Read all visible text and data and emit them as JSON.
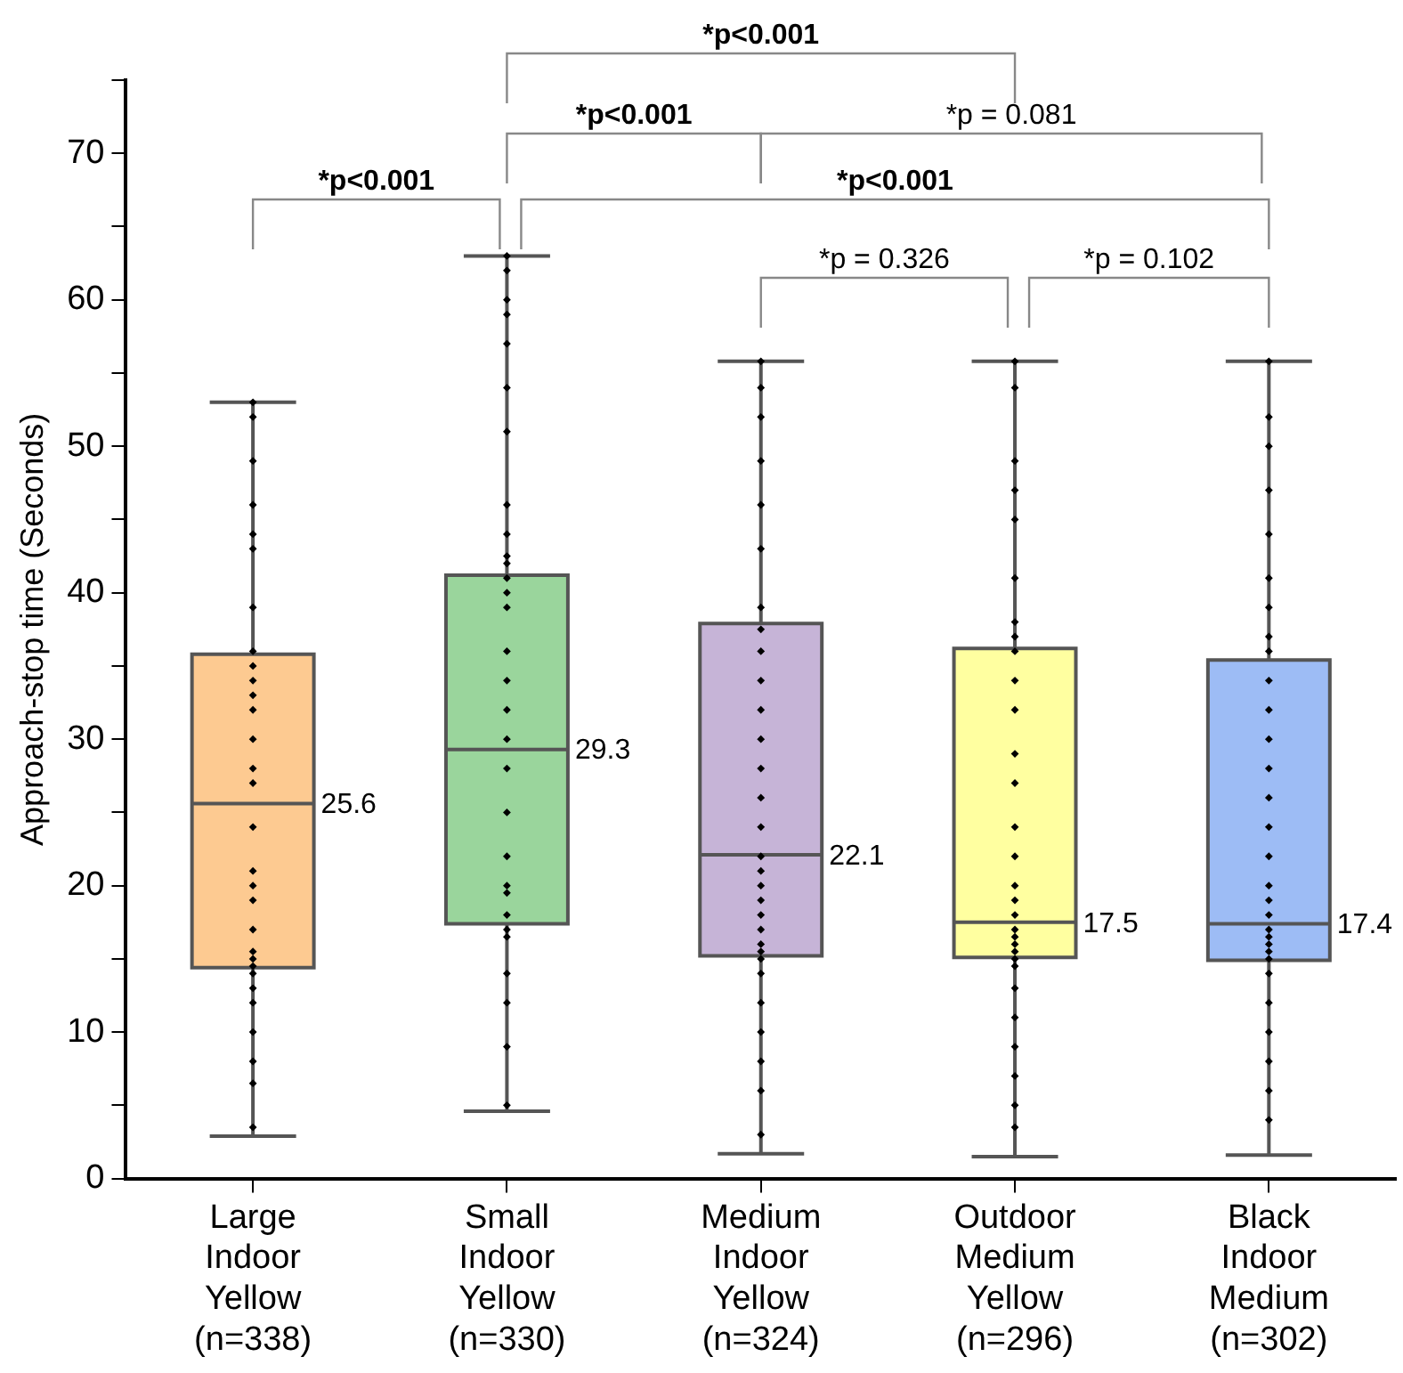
{
  "chart_data": {
    "type": "box",
    "ylabel": "Approach-stop time (Seconds)",
    "categories": [
      "Large\nIndoor\nYellow\n(n=338)",
      "Small\nIndoor\nYellow\n(n=330)",
      "Medium\nIndoor\nYellow\n(n=324)",
      "Outdoor\nMedium\nYellow\n(n=296)",
      "Black\nIndoor\nMedium\n(n=302)"
    ],
    "ylim": [
      0,
      75
    ],
    "yticks": [
      0,
      {
        "value": 5,
        "label": null
      },
      10,
      {
        "value": 15,
        "label": null
      },
      20,
      {
        "value": 25,
        "label": null
      },
      30,
      {
        "value": 35,
        "label": null
      },
      40,
      {
        "value": 45,
        "label": null
      },
      50,
      {
        "value": 55,
        "label": null
      },
      60,
      {
        "value": 65,
        "label": null
      },
      70,
      {
        "value": 75,
        "label": null
      }
    ],
    "grid": false,
    "legend": false,
    "series": [
      {
        "value_labels": [
          "25.6",
          "29.3",
          "22.1",
          "17.5",
          "17.4"
        ],
        "colors": [
          "#fdca91",
          "#9ad59c",
          "#c6b4d7",
          "#ffffa0",
          "#9dbcf5"
        ],
        "boxes": [
          {
            "low": 2.9,
            "q1": 14.4,
            "median": 25.6,
            "q3": 35.8,
            "high": 53
          },
          {
            "low": 4.6,
            "q1": 17.4,
            "median": 29.3,
            "q3": 41.2,
            "high": 63
          },
          {
            "low": 1.7,
            "q1": 15.2,
            "median": 22.1,
            "q3": 37.9,
            "high": 55.8
          },
          {
            "low": 1.5,
            "q1": 15.1,
            "median": 17.5,
            "q3": 36.2,
            "high": 55.8
          },
          {
            "low": 1.6,
            "q1": 14.9,
            "median": 17.4,
            "q3": 35.4,
            "high": 55.8
          }
        ]
      },
      {
        "type": "scatter",
        "color": "#000000",
        "marker": "diamond",
        "x": [
          "Large\nIndoor\nYellow\n(n=338)",
          "Large\nIndoor\nYellow\n(n=338)",
          "Large\nIndoor\nYellow\n(n=338)",
          "Large\nIndoor\nYellow\n(n=338)",
          "Large\nIndoor\nYellow\n(n=338)",
          "Large\nIndoor\nYellow\n(n=338)",
          "Large\nIndoor\nYellow\n(n=338)",
          "Large\nIndoor\nYellow\n(n=338)",
          "Large\nIndoor\nYellow\n(n=338)",
          "Large\nIndoor\nYellow\n(n=338)",
          "Large\nIndoor\nYellow\n(n=338)",
          "Large\nIndoor\nYellow\n(n=338)",
          "Large\nIndoor\nYellow\n(n=338)",
          "Large\nIndoor\nYellow\n(n=338)",
          "Large\nIndoor\nYellow\n(n=338)",
          "Large\nIndoor\nYellow\n(n=338)",
          "Large\nIndoor\nYellow\n(n=338)",
          "Large\nIndoor\nYellow\n(n=338)",
          "Large\nIndoor\nYellow\n(n=338)",
          "Large\nIndoor\nYellow\n(n=338)",
          "Large\nIndoor\nYellow\n(n=338)",
          "Large\nIndoor\nYellow\n(n=338)",
          "Large\nIndoor\nYellow\n(n=338)",
          "Large\nIndoor\nYellow\n(n=338)",
          "Large\nIndoor\nYellow\n(n=338)",
          "Large\nIndoor\nYellow\n(n=338)",
          "Large\nIndoor\nYellow\n(n=338)",
          "Large\nIndoor\nYellow\n(n=338)",
          "Large\nIndoor\nYellow\n(n=338)",
          "Large\nIndoor\nYellow\n(n=338)",
          "Small\nIndoor\nYellow\n(n=330)",
          "Small\nIndoor\nYellow\n(n=330)",
          "Small\nIndoor\nYellow\n(n=330)",
          "Small\nIndoor\nYellow\n(n=330)",
          "Small\nIndoor\nYellow\n(n=330)",
          "Small\nIndoor\nYellow\n(n=330)",
          "Small\nIndoor\nYellow\n(n=330)",
          "Small\nIndoor\nYellow\n(n=330)",
          "Small\nIndoor\nYellow\n(n=330)",
          "Small\nIndoor\nYellow\n(n=330)",
          "Small\nIndoor\nYellow\n(n=330)",
          "Small\nIndoor\nYellow\n(n=330)",
          "Small\nIndoor\nYellow\n(n=330)",
          "Small\nIndoor\nYellow\n(n=330)",
          "Small\nIndoor\nYellow\n(n=330)",
          "Small\nIndoor\nYellow\n(n=330)",
          "Small\nIndoor\nYellow\n(n=330)",
          "Small\nIndoor\nYellow\n(n=330)",
          "Small\nIndoor\nYellow\n(n=330)",
          "Small\nIndoor\nYellow\n(n=330)",
          "Small\nIndoor\nYellow\n(n=330)",
          "Small\nIndoor\nYellow\n(n=330)",
          "Small\nIndoor\nYellow\n(n=330)",
          "Small\nIndoor\nYellow\n(n=330)",
          "Small\nIndoor\nYellow\n(n=330)",
          "Small\nIndoor\nYellow\n(n=330)",
          "Small\nIndoor\nYellow\n(n=330)",
          "Small\nIndoor\nYellow\n(n=330)",
          "Small\nIndoor\nYellow\n(n=330)",
          "Small\nIndoor\nYellow\n(n=330)",
          "Medium\nIndoor\nYellow\n(n=324)",
          "Medium\nIndoor\nYellow\n(n=324)",
          "Medium\nIndoor\nYellow\n(n=324)",
          "Medium\nIndoor\nYellow\n(n=324)",
          "Medium\nIndoor\nYellow\n(n=324)",
          "Medium\nIndoor\nYellow\n(n=324)",
          "Medium\nIndoor\nYellow\n(n=324)",
          "Medium\nIndoor\nYellow\n(n=324)",
          "Medium\nIndoor\nYellow\n(n=324)",
          "Medium\nIndoor\nYellow\n(n=324)",
          "Medium\nIndoor\nYellow\n(n=324)",
          "Medium\nIndoor\nYellow\n(n=324)",
          "Medium\nIndoor\nYellow\n(n=324)",
          "Medium\nIndoor\nYellow\n(n=324)",
          "Medium\nIndoor\nYellow\n(n=324)",
          "Medium\nIndoor\nYellow\n(n=324)",
          "Medium\nIndoor\nYellow\n(n=324)",
          "Medium\nIndoor\nYellow\n(n=324)",
          "Medium\nIndoor\nYellow\n(n=324)",
          "Medium\nIndoor\nYellow\n(n=324)",
          "Medium\nIndoor\nYellow\n(n=324)",
          "Medium\nIndoor\nYellow\n(n=324)",
          "Medium\nIndoor\nYellow\n(n=324)",
          "Medium\nIndoor\nYellow\n(n=324)",
          "Medium\nIndoor\nYellow\n(n=324)",
          "Medium\nIndoor\nYellow\n(n=324)",
          "Medium\nIndoor\nYellow\n(n=324)",
          "Medium\nIndoor\nYellow\n(n=324)",
          "Medium\nIndoor\nYellow\n(n=324)",
          "Medium\nIndoor\nYellow\n(n=324)",
          "Outdoor\nMedium\nYellow\n(n=296)",
          "Outdoor\nMedium\nYellow\n(n=296)",
          "Outdoor\nMedium\nYellow\n(n=296)",
          "Outdoor\nMedium\nYellow\n(n=296)",
          "Outdoor\nMedium\nYellow\n(n=296)",
          "Outdoor\nMedium\nYellow\n(n=296)",
          "Outdoor\nMedium\nYellow\n(n=296)",
          "Outdoor\nMedium\nYellow\n(n=296)",
          "Outdoor\nMedium\nYellow\n(n=296)",
          "Outdoor\nMedium\nYellow\n(n=296)",
          "Outdoor\nMedium\nYellow\n(n=296)",
          "Outdoor\nMedium\nYellow\n(n=296)",
          "Outdoor\nMedium\nYellow\n(n=296)",
          "Outdoor\nMedium\nYellow\n(n=296)",
          "Outdoor\nMedium\nYellow\n(n=296)",
          "Outdoor\nMedium\nYellow\n(n=296)",
          "Outdoor\nMedium\nYellow\n(n=296)",
          "Outdoor\nMedium\nYellow\n(n=296)",
          "Outdoor\nMedium\nYellow\n(n=296)",
          "Outdoor\nMedium\nYellow\n(n=296)",
          "Outdoor\nMedium\nYellow\n(n=296)",
          "Outdoor\nMedium\nYellow\n(n=296)",
          "Outdoor\nMedium\nYellow\n(n=296)",
          "Outdoor\nMedium\nYellow\n(n=296)",
          "Outdoor\nMedium\nYellow\n(n=296)",
          "Outdoor\nMedium\nYellow\n(n=296)",
          "Outdoor\nMedium\nYellow\n(n=296)",
          "Outdoor\nMedium\nYellow\n(n=296)",
          "Outdoor\nMedium\nYellow\n(n=296)",
          "Outdoor\nMedium\nYellow\n(n=296)",
          "Black\nIndoor\nMedium\n(n=302)",
          "Black\nIndoor\nMedium\n(n=302)",
          "Black\nIndoor\nMedium\n(n=302)",
          "Black\nIndoor\nMedium\n(n=302)",
          "Black\nIndoor\nMedium\n(n=302)",
          "Black\nIndoor\nMedium\n(n=302)",
          "Black\nIndoor\nMedium\n(n=302)",
          "Black\nIndoor\nMedium\n(n=302)",
          "Black\nIndoor\nMedium\n(n=302)",
          "Black\nIndoor\nMedium\n(n=302)",
          "Black\nIndoor\nMedium\n(n=302)",
          "Black\nIndoor\nMedium\n(n=302)",
          "Black\nIndoor\nMedium\n(n=302)",
          "Black\nIndoor\nMedium\n(n=302)",
          "Black\nIndoor\nMedium\n(n=302)",
          "Black\nIndoor\nMedium\n(n=302)",
          "Black\nIndoor\nMedium\n(n=302)",
          "Black\nIndoor\nMedium\n(n=302)",
          "Black\nIndoor\nMedium\n(n=302)",
          "Black\nIndoor\nMedium\n(n=302)",
          "Black\nIndoor\nMedium\n(n=302)",
          "Black\nIndoor\nMedium\n(n=302)",
          "Black\nIndoor\nMedium\n(n=302)",
          "Black\nIndoor\nMedium\n(n=302)",
          "Black\nIndoor\nMedium\n(n=302)",
          "Black\nIndoor\nMedium\n(n=302)",
          "Black\nIndoor\nMedium\n(n=302)",
          "Black\nIndoor\nMedium\n(n=302)",
          "Black\nIndoor\nMedium\n(n=302)",
          "Black\nIndoor\nMedium\n(n=302)"
        ],
        "values": [
          53,
          52,
          49,
          46,
          44,
          43,
          39,
          36,
          35,
          34,
          33,
          32,
          30,
          28,
          27,
          24,
          21,
          20,
          19,
          17,
          15.5,
          15,
          14.5,
          14,
          13,
          12,
          10,
          8,
          6.5,
          3.5,
          63,
          62,
          60,
          59,
          57,
          54,
          51,
          46,
          44,
          42.5,
          42,
          41,
          40,
          39,
          36,
          34,
          32,
          30,
          28,
          25,
          22,
          20,
          19.5,
          18,
          17,
          16.5,
          14,
          12,
          9,
          5,
          55.8,
          54,
          52,
          49,
          46,
          43,
          39,
          37.5,
          36,
          34,
          32,
          30,
          28,
          26,
          24,
          22,
          21,
          20,
          19,
          18,
          17,
          16,
          15.5,
          15,
          14,
          12,
          10,
          8,
          6,
          3,
          55.8,
          54,
          49,
          47,
          45,
          41,
          38,
          37,
          36,
          34,
          32,
          29,
          27,
          24,
          22,
          20,
          19,
          18,
          17,
          16.5,
          16,
          15.5,
          15,
          14.5,
          13,
          11,
          9,
          7,
          5,
          3.5,
          55.8,
          52,
          50,
          47,
          44,
          41,
          39,
          37,
          36,
          34,
          32,
          30,
          28,
          26,
          24,
          22,
          20,
          19,
          18,
          17,
          16.5,
          16,
          15.5,
          15,
          14,
          12,
          10,
          8,
          6,
          4
        ]
      }
    ],
    "annotations": [
      "*p<0.001",
      "*p<0.001",
      "*p<0.001",
      "*p = 0.081",
      "*p<0.001",
      "*p = 0.326",
      "*p = 0.102"
    ]
  }
}
